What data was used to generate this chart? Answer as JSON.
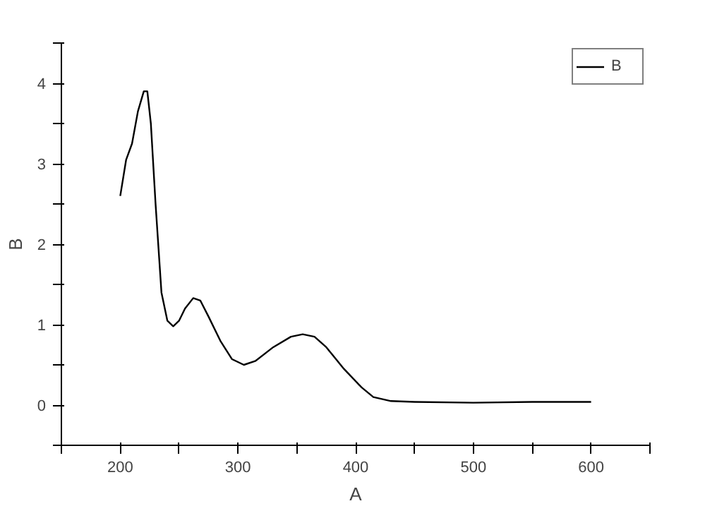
{
  "chart_data": {
    "type": "line",
    "xlabel": "A",
    "ylabel": "B",
    "legend": "top right",
    "grid": false,
    "marker": "none",
    "line_style": "solid",
    "xlim": [
      150,
      650
    ],
    "ylim": [
      -0.5,
      4.5
    ],
    "xticks": [
      {
        "value": 150,
        "label": null
      },
      200,
      {
        "value": 250,
        "label": null
      },
      300,
      {
        "value": 350,
        "label": null
      },
      400,
      {
        "value": 450,
        "label": null
      },
      500,
      {
        "value": 550,
        "label": null
      },
      600,
      {
        "value": 650,
        "label": null
      }
    ],
    "yticks": [
      {
        "value": -0.5,
        "label": null
      },
      0,
      {
        "value": 0.5,
        "label": null
      },
      1,
      {
        "value": 1.5,
        "label": null
      },
      2,
      {
        "value": 2.5,
        "label": null
      },
      3,
      {
        "value": 3.5,
        "label": null
      },
      4,
      {
        "value": 4.5,
        "label": null
      }
    ],
    "series": [
      {
        "name": "B",
        "color": "#000000",
        "x": [
          200,
          205,
          210,
          215,
          220,
          223,
          226,
          230,
          235,
          240,
          245,
          250,
          255,
          262,
          268,
          275,
          285,
          295,
          305,
          315,
          330,
          345,
          355,
          365,
          375,
          390,
          405,
          415,
          430,
          450,
          500,
          550,
          600
        ],
        "values": [
          2.6,
          3.05,
          3.25,
          3.65,
          3.9,
          3.9,
          3.5,
          2.5,
          1.4,
          1.05,
          0.98,
          1.05,
          1.2,
          1.33,
          1.3,
          1.1,
          0.8,
          0.57,
          0.5,
          0.55,
          0.72,
          0.85,
          0.88,
          0.85,
          0.72,
          0.45,
          0.22,
          0.1,
          0.05,
          0.04,
          0.03,
          0.04,
          0.04
        ]
      }
    ]
  }
}
